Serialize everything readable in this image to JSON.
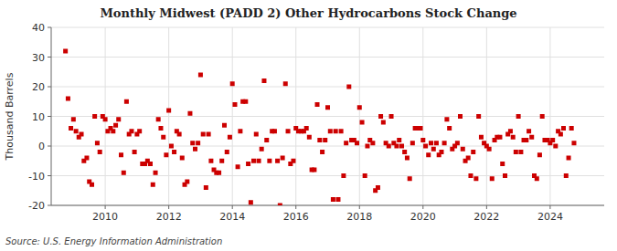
{
  "chart_data": {
    "type": "scatter",
    "title": "Monthly Midwest (PADD 2) Other Hydrocarbons Stock Change",
    "y_label": "Thousand Barrels",
    "source": "Source: U.S. Energy Information Administration",
    "color": "#cc0000",
    "marker": "square",
    "grid": true,
    "xlim": [
      2008.3,
      2025.7
    ],
    "xticks": [
      2010,
      2012,
      2014,
      2016,
      2018,
      2020,
      2022,
      2024
    ],
    "ylim": [
      -20,
      40
    ],
    "yticks": [
      -20,
      -10,
      0,
      10,
      20,
      30,
      40
    ],
    "x": [
      2008.75,
      2008.83,
      2008.92,
      2009.0,
      2009.08,
      2009.17,
      2009.25,
      2009.33,
      2009.42,
      2009.5,
      2009.58,
      2009.67,
      2009.75,
      2009.83,
      2009.92,
      2010.0,
      2010.08,
      2010.17,
      2010.25,
      2010.33,
      2010.42,
      2010.5,
      2010.58,
      2010.67,
      2010.75,
      2010.83,
      2010.92,
      2011.0,
      2011.08,
      2011.17,
      2011.25,
      2011.33,
      2011.42,
      2011.5,
      2011.58,
      2011.67,
      2011.75,
      2011.83,
      2011.92,
      2012.0,
      2012.08,
      2012.17,
      2012.25,
      2012.33,
      2012.42,
      2012.5,
      2012.58,
      2012.67,
      2012.75,
      2012.83,
      2012.92,
      2013.0,
      2013.08,
      2013.17,
      2013.25,
      2013.33,
      2013.42,
      2013.5,
      2013.58,
      2013.67,
      2013.75,
      2013.83,
      2013.92,
      2014.0,
      2014.08,
      2014.17,
      2014.25,
      2014.33,
      2014.42,
      2014.5,
      2014.58,
      2014.67,
      2014.75,
      2014.83,
      2014.92,
      2015.0,
      2015.08,
      2015.17,
      2015.25,
      2015.33,
      2015.42,
      2015.5,
      2015.58,
      2015.67,
      2015.75,
      2015.83,
      2015.92,
      2016.0,
      2016.08,
      2016.17,
      2016.25,
      2016.33,
      2016.42,
      2016.5,
      2016.58,
      2016.67,
      2016.75,
      2016.83,
      2016.92,
      2017.0,
      2017.08,
      2017.17,
      2017.25,
      2017.33,
      2017.42,
      2017.5,
      2017.58,
      2017.67,
      2017.75,
      2017.83,
      2017.92,
      2018.0,
      2018.08,
      2018.17,
      2018.25,
      2018.33,
      2018.42,
      2018.5,
      2018.58,
      2018.67,
      2018.75,
      2018.83,
      2018.92,
      2019.0,
      2019.08,
      2019.17,
      2019.25,
      2019.33,
      2019.42,
      2019.5,
      2019.58,
      2019.67,
      2019.75,
      2019.83,
      2019.92,
      2020.0,
      2020.08,
      2020.17,
      2020.25,
      2020.33,
      2020.42,
      2020.5,
      2020.58,
      2020.67,
      2020.75,
      2020.83,
      2020.92,
      2021.0,
      2021.08,
      2021.17,
      2021.25,
      2021.33,
      2021.42,
      2021.5,
      2021.58,
      2021.67,
      2021.75,
      2021.83,
      2021.92,
      2022.0,
      2022.08,
      2022.17,
      2022.25,
      2022.33,
      2022.42,
      2022.5,
      2022.58,
      2022.67,
      2022.75,
      2022.83,
      2022.92,
      2023.0,
      2023.08,
      2023.17,
      2023.25,
      2023.33,
      2023.42,
      2023.5,
      2023.58,
      2023.67,
      2023.75,
      2023.83,
      2023.92,
      2024.0,
      2024.08,
      2024.17,
      2024.25,
      2024.33,
      2024.42,
      2024.5,
      2024.58,
      2024.67,
      2024.75
    ],
    "values": [
      32,
      16,
      6,
      9,
      5,
      3,
      4,
      -5,
      -4,
      -12,
      -13,
      10,
      1,
      -2,
      10,
      9,
      5,
      6,
      5,
      7,
      9,
      -3,
      -9,
      15,
      4,
      5,
      -2,
      4,
      5,
      -6,
      -6,
      -5,
      -6,
      -13,
      -9,
      9,
      6,
      3,
      -3,
      12,
      0,
      -2,
      5,
      4,
      -4,
      -13,
      -12,
      11,
      1,
      -1,
      1,
      24,
      4,
      -14,
      4,
      -5,
      -8,
      -9,
      -9,
      -5,
      7,
      -2,
      3,
      21,
      14,
      -7,
      5,
      15,
      15,
      -6,
      -19,
      -5,
      4,
      -5,
      -1,
      22,
      2,
      -5,
      5,
      5,
      -5,
      -20,
      -4,
      21,
      5,
      -6,
      -5,
      6,
      5,
      5,
      5,
      6,
      3,
      -8,
      -8,
      14,
      2,
      -2,
      2,
      13,
      5,
      -18,
      5,
      -18,
      5,
      -10,
      1,
      20,
      2,
      2,
      1,
      13,
      8,
      -10,
      0,
      2,
      1,
      -15,
      -14,
      10,
      8,
      1,
      0,
      10,
      1,
      0,
      2,
      0,
      -2,
      -4,
      -11,
      1,
      6,
      6,
      6,
      2,
      0,
      -3,
      1,
      -1,
      1,
      -3,
      -2,
      1,
      9,
      6,
      -1,
      0,
      1,
      10,
      -1,
      -5,
      -4,
      -10,
      -2,
      -11,
      10,
      3,
      1,
      0,
      -1,
      -11,
      2,
      3,
      3,
      -6,
      -10,
      4,
      5,
      3,
      -2,
      10,
      -2,
      2,
      2,
      5,
      3,
      -10,
      -11,
      -3,
      10,
      2,
      2,
      1,
      2,
      0,
      5,
      4,
      6,
      -10,
      -4,
      6,
      1
    ]
  }
}
